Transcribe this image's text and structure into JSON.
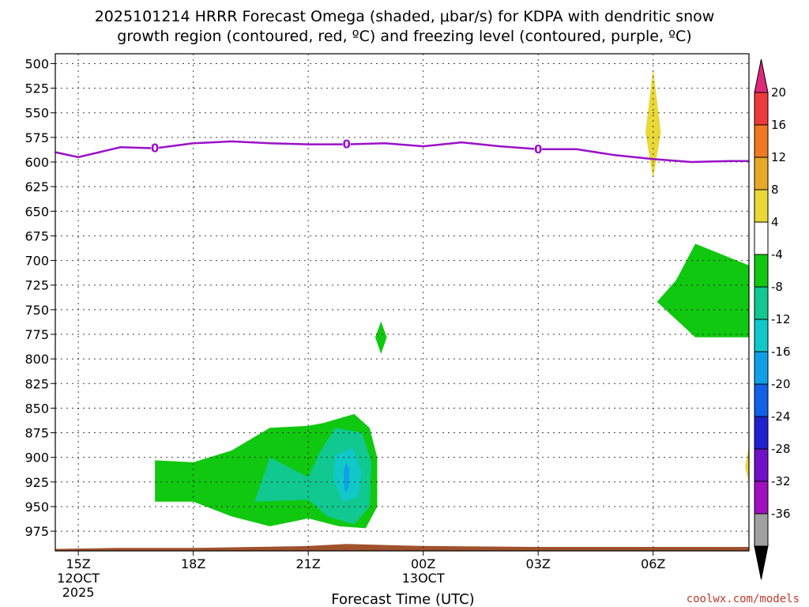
{
  "chart_data": {
    "type": "heatmap",
    "title_lines": [
      "2025101214 HRRR Forecast Omega (shaded, μbar/s) for KDPA with dendritic snow",
      "growth region (contoured, red, ºC) and freezing level (contoured, purple, ºC)"
    ],
    "xlabel": "Forecast Time (UTC)",
    "ylabel": "",
    "credit": "coolwx.com/models",
    "x_range_hours": [
      14.4,
      32.5
    ],
    "y_range_hpa": [
      490,
      995
    ],
    "y_scale": "linear-pressure",
    "grid": true,
    "x_ticks": [
      {
        "hour": 15,
        "lines": [
          "15Z",
          "12OCT",
          "2025"
        ]
      },
      {
        "hour": 18,
        "lines": [
          "18Z"
        ]
      },
      {
        "hour": 21,
        "lines": [
          "21Z"
        ]
      },
      {
        "hour": 24,
        "lines": [
          "00Z",
          "13OCT"
        ]
      },
      {
        "hour": 27,
        "lines": [
          "03Z"
        ]
      },
      {
        "hour": 30,
        "lines": [
          "06Z"
        ]
      }
    ],
    "y_ticks": [
      "500",
      "525",
      "550",
      "575",
      "600",
      "625",
      "650",
      "675",
      "700",
      "725",
      "750",
      "775",
      "800",
      "825",
      "850",
      "875",
      "900",
      "925",
      "950",
      "975"
    ],
    "colorbar": {
      "labels": [
        "20",
        "16",
        "12",
        "8",
        "4",
        "-4",
        "-8",
        "-12",
        "-16",
        "-20",
        "-24",
        "-28",
        "-32",
        "-36"
      ],
      "colors": [
        "#e0287a",
        "#ee3a3a",
        "#f07820",
        "#e8a828",
        "#e8d838",
        "#ffffff",
        "#10c810",
        "#10c890",
        "#10c8c8",
        "#10a0e8",
        "#1060e8",
        "#2020d0",
        "#7010c8",
        "#a010c0",
        "#a0a0a0",
        "#000000"
      ]
    },
    "freezing_level": {
      "label": "0",
      "color": "#9a10c8",
      "hours": [
        14.4,
        15.0,
        16.1,
        17.0,
        18.0,
        19.0,
        20.0,
        21.0,
        22.0,
        23.0,
        24.0,
        25.0,
        26.0,
        27.0,
        28.0,
        29.0,
        30.0,
        31.0,
        32.0,
        32.5
      ],
      "pressure": [
        590,
        595,
        585,
        586,
        581,
        579,
        581,
        582,
        582,
        581,
        584,
        580,
        584,
        587,
        587,
        593,
        597,
        600,
        599,
        599
      ],
      "label_hours": [
        17.0,
        22.0,
        27.0
      ]
    },
    "shaded_regions": [
      {
        "name": "upper-positive-omega",
        "color": "#e8d838",
        "points": [
          [
            30.0,
            505
          ],
          [
            30.2,
            570
          ],
          [
            30.0,
            617
          ],
          [
            29.8,
            570
          ]
        ]
      },
      {
        "name": "green-small-diamond",
        "color": "#10c810",
        "points": [
          [
            22.9,
            762
          ],
          [
            23.05,
            778
          ],
          [
            22.9,
            795
          ],
          [
            22.75,
            778
          ]
        ]
      },
      {
        "name": "green-right-plume",
        "color": "#10c810",
        "points": [
          [
            31.1,
            683
          ],
          [
            32.5,
            705
          ],
          [
            32.5,
            778
          ],
          [
            31.1,
            778
          ],
          [
            30.1,
            742
          ],
          [
            30.6,
            720
          ]
        ]
      },
      {
        "name": "lower-left-green",
        "color": "#10c810",
        "points": [
          [
            17.0,
            903
          ],
          [
            18.0,
            905
          ],
          [
            19.0,
            893
          ],
          [
            20.0,
            870
          ],
          [
            21.0,
            868
          ],
          [
            21.4,
            865
          ],
          [
            22.2,
            856
          ],
          [
            22.6,
            870
          ],
          [
            22.8,
            900
          ],
          [
            22.8,
            950
          ],
          [
            22.5,
            972
          ],
          [
            21.8,
            970
          ],
          [
            21.0,
            962
          ],
          [
            20.0,
            970
          ],
          [
            19.0,
            960
          ],
          [
            18.0,
            945
          ],
          [
            17.0,
            945
          ]
        ]
      },
      {
        "name": "lower-cyan-green",
        "color": "#10c890",
        "points": [
          [
            19.6,
            945
          ],
          [
            20.0,
            900
          ],
          [
            21.0,
            920
          ],
          [
            21.3,
            895
          ],
          [
            21.7,
            870
          ],
          [
            22.4,
            875
          ],
          [
            22.65,
            905
          ],
          [
            22.6,
            950
          ],
          [
            22.2,
            968
          ],
          [
            21.5,
            960
          ],
          [
            21.0,
            943
          ]
        ]
      },
      {
        "name": "lower-cyan",
        "color": "#10c8c8",
        "points": [
          [
            21.7,
            898
          ],
          [
            22.15,
            890
          ],
          [
            22.4,
            915
          ],
          [
            22.3,
            940
          ],
          [
            21.9,
            945
          ],
          [
            21.65,
            922
          ]
        ]
      },
      {
        "name": "lower-blue-core",
        "color": "#10a0e8",
        "points": [
          [
            21.98,
            905
          ],
          [
            22.08,
            912
          ],
          [
            22.05,
            932
          ],
          [
            21.95,
            935
          ],
          [
            21.92,
            915
          ]
        ]
      },
      {
        "name": "right-edge-positive",
        "color": "#e8d838",
        "points": [
          [
            32.5,
            888
          ],
          [
            32.5,
            925
          ],
          [
            32.4,
            910
          ]
        ]
      }
    ],
    "terrain": {
      "color": "#a0522d",
      "hours": [
        14.4,
        16.0,
        18.0,
        21.0,
        22.0,
        24.0,
        27.0,
        30.0,
        32.5
      ],
      "pressure": [
        993,
        992,
        992,
        990,
        988,
        990,
        991,
        991,
        991
      ]
    }
  }
}
